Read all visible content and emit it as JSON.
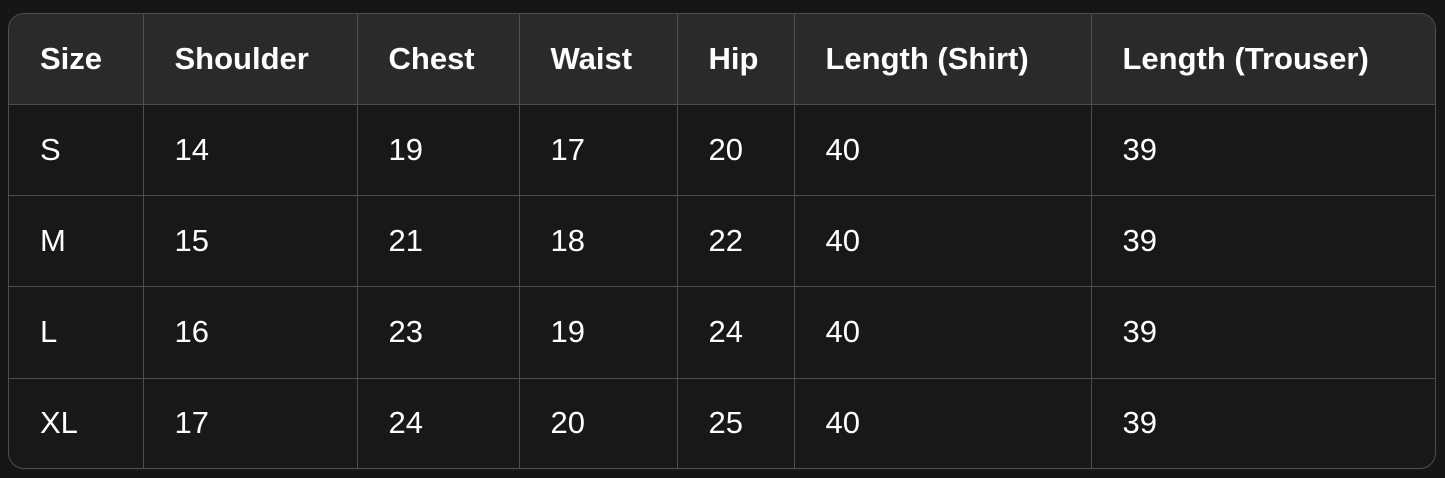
{
  "table": {
    "headers": [
      "Size",
      "Shoulder",
      "Chest",
      "Waist",
      "Hip",
      "Length (Shirt)",
      "Length (Trouser)"
    ],
    "rows": [
      [
        "S",
        "14",
        "19",
        "17",
        "20",
        "40",
        "39"
      ],
      [
        "M",
        "15",
        "21",
        "18",
        "22",
        "40",
        "39"
      ],
      [
        "L",
        "16",
        "23",
        "19",
        "24",
        "40",
        "39"
      ],
      [
        "XL",
        "17",
        "24",
        "20",
        "25",
        "40",
        "39"
      ]
    ]
  },
  "colors": {
    "background": "#161616",
    "header_bg": "#2a2a2a",
    "cell_bg": "#181818",
    "border": "#4e4e4e",
    "text": "#ffffff"
  }
}
